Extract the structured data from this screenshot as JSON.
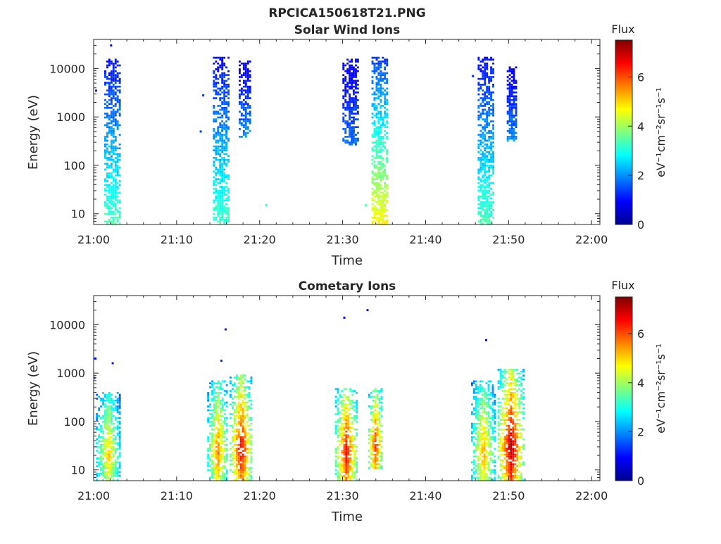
{
  "chart_data": {
    "suptitle": "RPCICA150618T21.PNG",
    "type": "heatmap",
    "time_ticks": [
      "21:00",
      "21:10",
      "21:20",
      "21:30",
      "21:40",
      "21:50",
      "22:00"
    ],
    "time_range_min": [
      0,
      61
    ],
    "energy_ticks": [
      10,
      100,
      1000,
      10000
    ],
    "energy_tick_labels": [
      "10",
      "100",
      "1000",
      "10000"
    ],
    "energy_range_eV": [
      6,
      40000
    ],
    "yscale": "log",
    "xlabel": "Time",
    "ylabel": "Energy (eV)",
    "colorbar": {
      "title": "Flux",
      "label": "eV⁻¹cm⁻²sr⁻¹s⁻¹",
      "range": [
        0,
        7.5
      ],
      "ticks": [
        0,
        2,
        4,
        6
      ],
      "colormap": "jet"
    },
    "panels": [
      {
        "id": "solar-wind",
        "title": "Solar Wind Ions",
        "bursts": [
          {
            "t": 2.3,
            "e_min": 6,
            "e_max": 16000,
            "dt": 0.9,
            "peak_flux": 3.4
          },
          {
            "t": 15.4,
            "e_min": 6,
            "e_max": 18000,
            "dt": 0.9,
            "peak_flux": 3.3
          },
          {
            "t": 18.3,
            "e_min": 380,
            "e_max": 15000,
            "dt": 0.7,
            "peak_flux": 2.0
          },
          {
            "t": 31.0,
            "e_min": 250,
            "e_max": 16000,
            "dt": 0.9,
            "peak_flux": 1.8
          },
          {
            "t": 34.5,
            "e_min": 6,
            "e_max": 17000,
            "dt": 0.9,
            "peak_flux": 4.8
          },
          {
            "t": 47.3,
            "e_min": 6,
            "e_max": 17000,
            "dt": 0.9,
            "peak_flux": 3.4
          },
          {
            "t": 50.5,
            "e_min": 300,
            "e_max": 11000,
            "dt": 0.6,
            "peak_flux": 2.0
          }
        ],
        "isolated_points": [
          {
            "t": 2.1,
            "e": 30000,
            "flux": 1.0
          },
          {
            "t": 0.3,
            "e": 3500,
            "flux": 1.2
          },
          {
            "t": 13.2,
            "e": 2800,
            "flux": 1.3
          },
          {
            "t": 12.9,
            "e": 500,
            "flux": 1.4
          },
          {
            "t": 45.7,
            "e": 7000,
            "flux": 1.2
          },
          {
            "t": 20.8,
            "e": 15,
            "flux": 3.3
          },
          {
            "t": 32.8,
            "e": 15,
            "flux": 3.5
          }
        ]
      },
      {
        "id": "cometary",
        "title": "Cometary Ions",
        "bursts": [
          {
            "t": 1.8,
            "e_min": 6,
            "e_max": 400,
            "dt": 1.4,
            "peak_flux": 5.2
          },
          {
            "t": 15.0,
            "e_min": 6,
            "e_max": 700,
            "dt": 1.2,
            "peak_flux": 5.8
          },
          {
            "t": 17.8,
            "e_min": 6,
            "e_max": 900,
            "dt": 1.3,
            "peak_flux": 6.9
          },
          {
            "t": 30.5,
            "e_min": 6,
            "e_max": 500,
            "dt": 1.3,
            "peak_flux": 6.8
          },
          {
            "t": 34.0,
            "e_min": 10,
            "e_max": 500,
            "dt": 0.8,
            "peak_flux": 6.5
          },
          {
            "t": 47.0,
            "e_min": 6,
            "e_max": 700,
            "dt": 1.4,
            "peak_flux": 5.5
          },
          {
            "t": 50.3,
            "e_min": 6,
            "e_max": 1200,
            "dt": 1.5,
            "peak_flux": 7.4
          }
        ],
        "isolated_points": [
          {
            "t": 0.2,
            "e": 2000,
            "flux": 1.0
          },
          {
            "t": 2.3,
            "e": 1600,
            "flux": 1.2
          },
          {
            "t": 15.9,
            "e": 8000,
            "flux": 1.1
          },
          {
            "t": 15.4,
            "e": 1800,
            "flux": 1.3
          },
          {
            "t": 30.2,
            "e": 14000,
            "flux": 1.0
          },
          {
            "t": 33.0,
            "e": 20000,
            "flux": 1.0
          },
          {
            "t": 47.3,
            "e": 4800,
            "flux": 1.0
          },
          {
            "t": 0.1,
            "e": 800,
            "flux": 1.5
          }
        ]
      }
    ]
  }
}
